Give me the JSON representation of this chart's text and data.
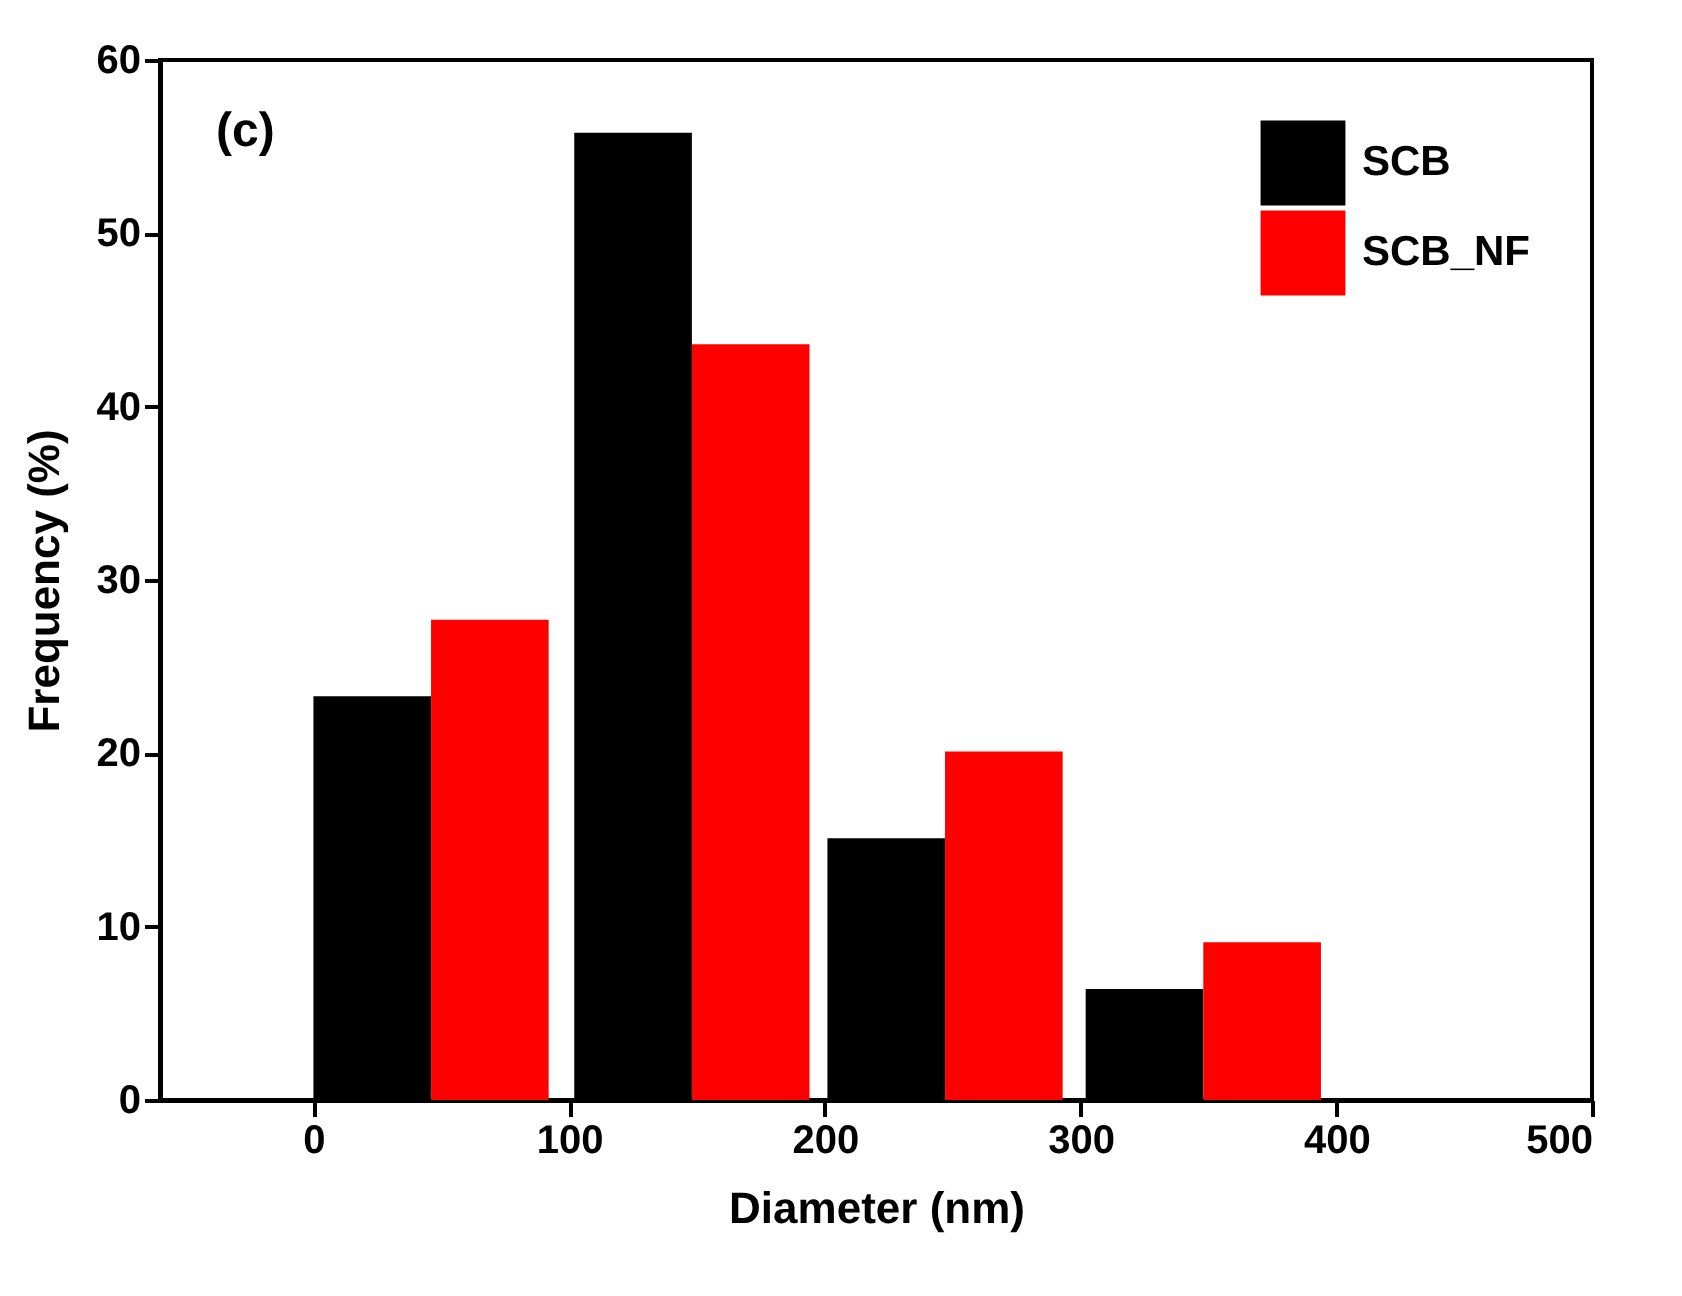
{
  "chart_data": {
    "type": "bar",
    "xlabel": "Diameter (nm)",
    "ylabel": "Frequency (%)",
    "annotations": [
      "(c)"
    ],
    "xlim": [
      -60,
      500
    ],
    "xticks": [
      0,
      100,
      200,
      300,
      400,
      500
    ],
    "ylim": [
      0,
      60
    ],
    "yticks": [
      0,
      10,
      20,
      30,
      40,
      50,
      60
    ],
    "legend": "top right",
    "grid": false,
    "series": [
      {
        "name": "SCB",
        "color": "#000000",
        "x": [
          23,
          125,
          224,
          325
        ],
        "values": [
          23.3,
          55.8,
          15.1,
          6.4
        ]
      },
      {
        "name": "SCB_NF",
        "color": "#ff0000",
        "x": [
          69,
          171,
          270,
          371
        ],
        "values": [
          27.7,
          43.6,
          20.1,
          9.1
        ]
      }
    ]
  }
}
